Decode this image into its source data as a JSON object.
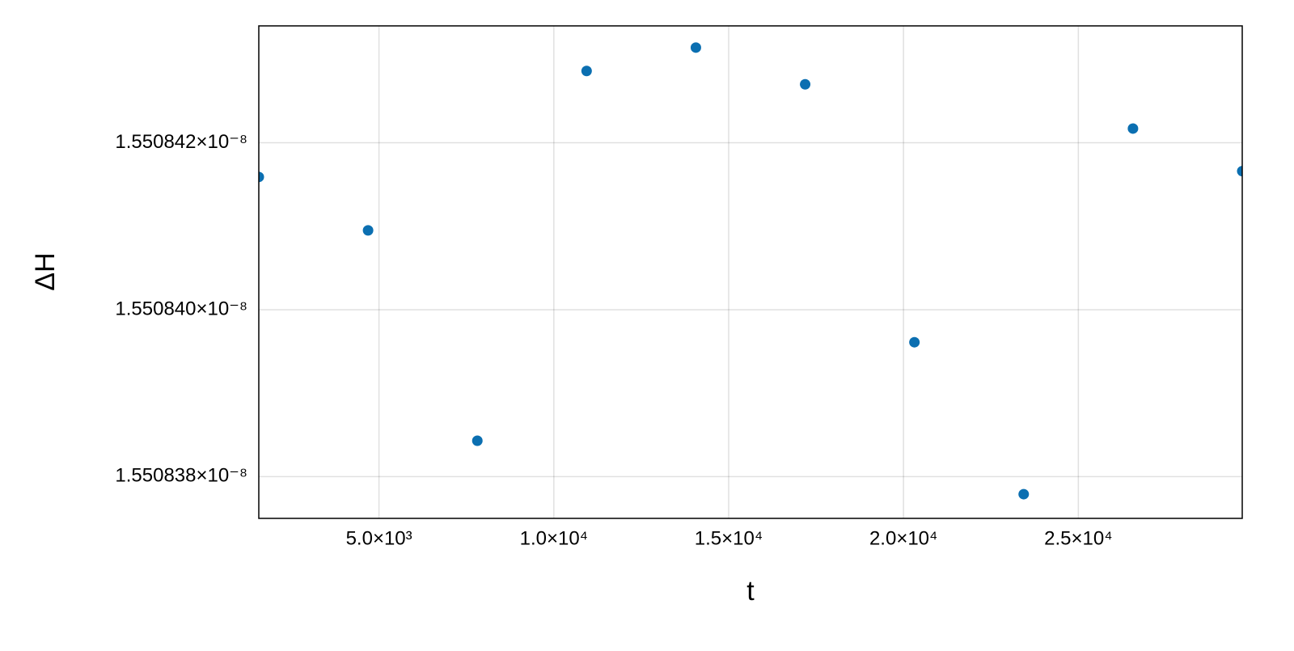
{
  "chart_data": {
    "type": "scatter",
    "x_label": "t",
    "y_label": "ΔH",
    "x": [
      1562.5,
      4687.5,
      7812.5,
      10937.5,
      14062.5,
      17187.5,
      20312.5,
      23437.5,
      26562.5,
      29687.5
    ],
    "series": [
      {
        "name": "ΔH",
        "color": "#0b6fb1",
        "values": [
          1.55084159e-08,
          1.55084095e-08,
          1.55083843e-08,
          1.55084286e-08,
          1.55084314e-08,
          1.5508427e-08,
          1.55083961e-08,
          1.55083779e-08,
          1.55084217e-08,
          1.55084166e-08
        ]
      }
    ],
    "xlim": [
      1562.5,
      29687.5
    ],
    "ylim": [
      1.5508375e-08,
      1.5508434e-08
    ],
    "xticks": [
      {
        "value": 5000,
        "label": "5.0×10³"
      },
      {
        "value": 10000,
        "label": "1.0×10⁴"
      },
      {
        "value": 15000,
        "label": "1.5×10⁴"
      },
      {
        "value": 20000,
        "label": "2.0×10⁴"
      },
      {
        "value": 25000,
        "label": "2.5×10⁴"
      }
    ],
    "yticks": [
      {
        "value": 1.550838e-08,
        "label": "1.550838×10⁻⁸"
      },
      {
        "value": 1.55084e-08,
        "label": "1.550840×10⁻⁸"
      },
      {
        "value": 1.550842e-08,
        "label": "1.550842×10⁻⁸"
      }
    ],
    "grid": true
  }
}
